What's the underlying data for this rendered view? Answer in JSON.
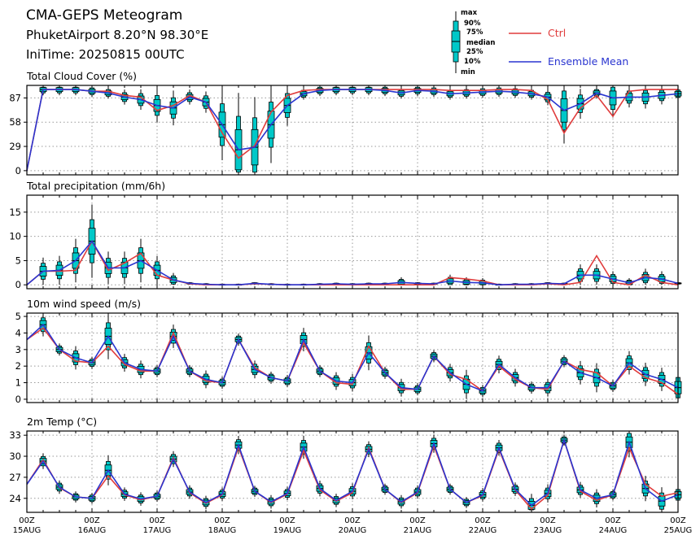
{
  "header": {
    "title": "CMA-GEPS Meteogram",
    "station": "PhuketAirport 8.20°N 98.30°E",
    "init": "IniTime: 20250815 00UTC"
  },
  "legend": {
    "box_labels": [
      "max",
      "90%",
      "75%",
      "median",
      "25%",
      "10%",
      "min"
    ],
    "lines": [
      {
        "label": "Ctrl",
        "color": "#e03c3c"
      },
      {
        "label": "Ensemble Mean",
        "color": "#2a35d0"
      }
    ]
  },
  "colors": {
    "box_fill": "#00c8c8",
    "ctrl": "#e03c3c",
    "mean": "#2a35d0",
    "grid": "#999999"
  },
  "time_axis": {
    "steps_per_day": 4,
    "total_steps": 40,
    "labels": [
      {
        "step": 0,
        "top": "00Z",
        "bottom": "15AUG"
      },
      {
        "step": 4,
        "top": "00Z",
        "bottom": "16AUG"
      },
      {
        "step": 8,
        "top": "00Z",
        "bottom": "17AUG"
      },
      {
        "step": 12,
        "top": "00Z",
        "bottom": "18AUG"
      },
      {
        "step": 16,
        "top": "00Z",
        "bottom": "19AUG"
      },
      {
        "step": 20,
        "top": "00Z",
        "bottom": "20AUG"
      },
      {
        "step": 24,
        "top": "00Z",
        "bottom": "21AUG"
      },
      {
        "step": 28,
        "top": "00Z",
        "bottom": "22AUG"
      },
      {
        "step": 32,
        "top": "00Z",
        "bottom": "23AUG"
      },
      {
        "step": 36,
        "top": "00Z",
        "bottom": "24AUG"
      },
      {
        "step": 40,
        "top": "00Z",
        "bottom": "25AUG"
      }
    ]
  },
  "chart_data": [
    {
      "type": "box",
      "title": "Total Cloud Cover (%)",
      "ylim": [
        -5,
        102
      ],
      "yticks": [
        0,
        29,
        58,
        87
      ],
      "ctrl": [
        0,
        97,
        97,
        97,
        95,
        95,
        90,
        88,
        72,
        78,
        90,
        82,
        45,
        15,
        30,
        70,
        90,
        96,
        97,
        97,
        97,
        97,
        97,
        97,
        97,
        97,
        96,
        96,
        96,
        97,
        97,
        96,
        85,
        45,
        75,
        90,
        65,
        95,
        97,
        97,
        97
      ],
      "mean": [
        0,
        97,
        97,
        97,
        95,
        93,
        88,
        85,
        78,
        75,
        88,
        82,
        55,
        25,
        28,
        55,
        78,
        92,
        96,
        97,
        97,
        97,
        96,
        93,
        96,
        95,
        92,
        93,
        94,
        95,
        94,
        92,
        88,
        72,
        80,
        93,
        87,
        88,
        88,
        90,
        92
      ]
    },
    {
      "type": "box",
      "title": "Total precipitation (mm/6h)",
      "ylim": [
        -0.8,
        18.5
      ],
      "yticks": [
        0,
        5,
        10,
        15
      ],
      "ctrl": [
        0,
        2.8,
        2.8,
        3,
        9,
        3,
        4.5,
        6.5,
        2,
        1,
        0.2,
        0,
        0,
        0,
        0.2,
        0.1,
        0,
        0,
        0,
        0,
        0,
        0,
        0,
        0,
        0,
        0,
        1.5,
        1.2,
        0.8,
        0,
        0,
        0,
        0.2,
        0,
        0.5,
        6,
        0.5,
        0,
        2,
        0.5,
        0
      ],
      "mean": [
        0,
        2.8,
        3,
        5,
        9,
        3.5,
        3.5,
        5,
        3,
        1,
        0.3,
        0.1,
        0,
        0,
        0.3,
        0.1,
        0,
        0,
        0.1,
        0.2,
        0.1,
        0.2,
        0.2,
        0.5,
        0.3,
        0.2,
        0.8,
        0.5,
        0.4,
        0,
        0.1,
        0.1,
        0.3,
        0.2,
        2,
        2,
        1.2,
        0.4,
        1.5,
        1.2,
        0.3
      ]
    },
    {
      "type": "box",
      "title": "10m wind speed (m/s)",
      "ylim": [
        -0.2,
        5.2
      ],
      "yticks": [
        0,
        1,
        2,
        3,
        4,
        5
      ],
      "ctrl": [
        3.6,
        4.3,
        3,
        2.3,
        2.2,
        3.2,
        2.1,
        1.7,
        1.7,
        4,
        1.7,
        1.1,
        1.0,
        3.6,
        1.9,
        1.3,
        1.1,
        3.4,
        1.7,
        1.0,
        0.9,
        3.2,
        1.6,
        0.6,
        0.6,
        2.6,
        1.5,
        1.2,
        0.5,
        2,
        1.2,
        0.7,
        0.6,
        2.3,
        1.8,
        1.6,
        0.8,
        2.0,
        1.3,
        1.0,
        0.3
      ],
      "mean": [
        3.6,
        4.5,
        3,
        2.5,
        2.2,
        3.8,
        2.2,
        1.8,
        1.7,
        3.8,
        1.7,
        1.2,
        1.0,
        3.6,
        1.8,
        1.3,
        1.1,
        3.6,
        1.7,
        1.1,
        1.0,
        2.8,
        1.6,
        0.7,
        0.6,
        2.6,
        1.6,
        0.9,
        0.5,
        2.1,
        1.3,
        0.7,
        0.7,
        2.3,
        1.6,
        1.3,
        0.8,
        2.2,
        1.5,
        1.2,
        0.7
      ]
    },
    {
      "type": "box",
      "title": "2m Temp (°C)",
      "ylim": [
        22,
        33.6
      ],
      "yticks": [
        24,
        27,
        30,
        33
      ],
      "ctrl": [
        26,
        29.5,
        25.5,
        24.2,
        24,
        27.2,
        24.5,
        23.8,
        24.3,
        29.8,
        24.8,
        23.3,
        24.5,
        31.3,
        25,
        23.4,
        24.6,
        30.8,
        25.2,
        23.6,
        24.8,
        31.2,
        25.3,
        23.4,
        24.8,
        31.5,
        25.3,
        23.4,
        24.4,
        31,
        25.2,
        22.5,
        24.4,
        32.3,
        25,
        23.7,
        24.5,
        31.2,
        26,
        24.3,
        24.8
      ],
      "mean": [
        26,
        29.3,
        25.6,
        24.2,
        24,
        28,
        24.6,
        23.9,
        24.3,
        29.6,
        24.9,
        23.4,
        24.6,
        31.6,
        25,
        23.5,
        24.7,
        31.3,
        25.4,
        23.7,
        25,
        31,
        25.3,
        23.5,
        24.9,
        31.8,
        25.3,
        23.4,
        24.5,
        31.2,
        25.3,
        23,
        24.7,
        32.3,
        25.2,
        24,
        24.5,
        32,
        25.4,
        23.6,
        24.5
      ]
    }
  ]
}
